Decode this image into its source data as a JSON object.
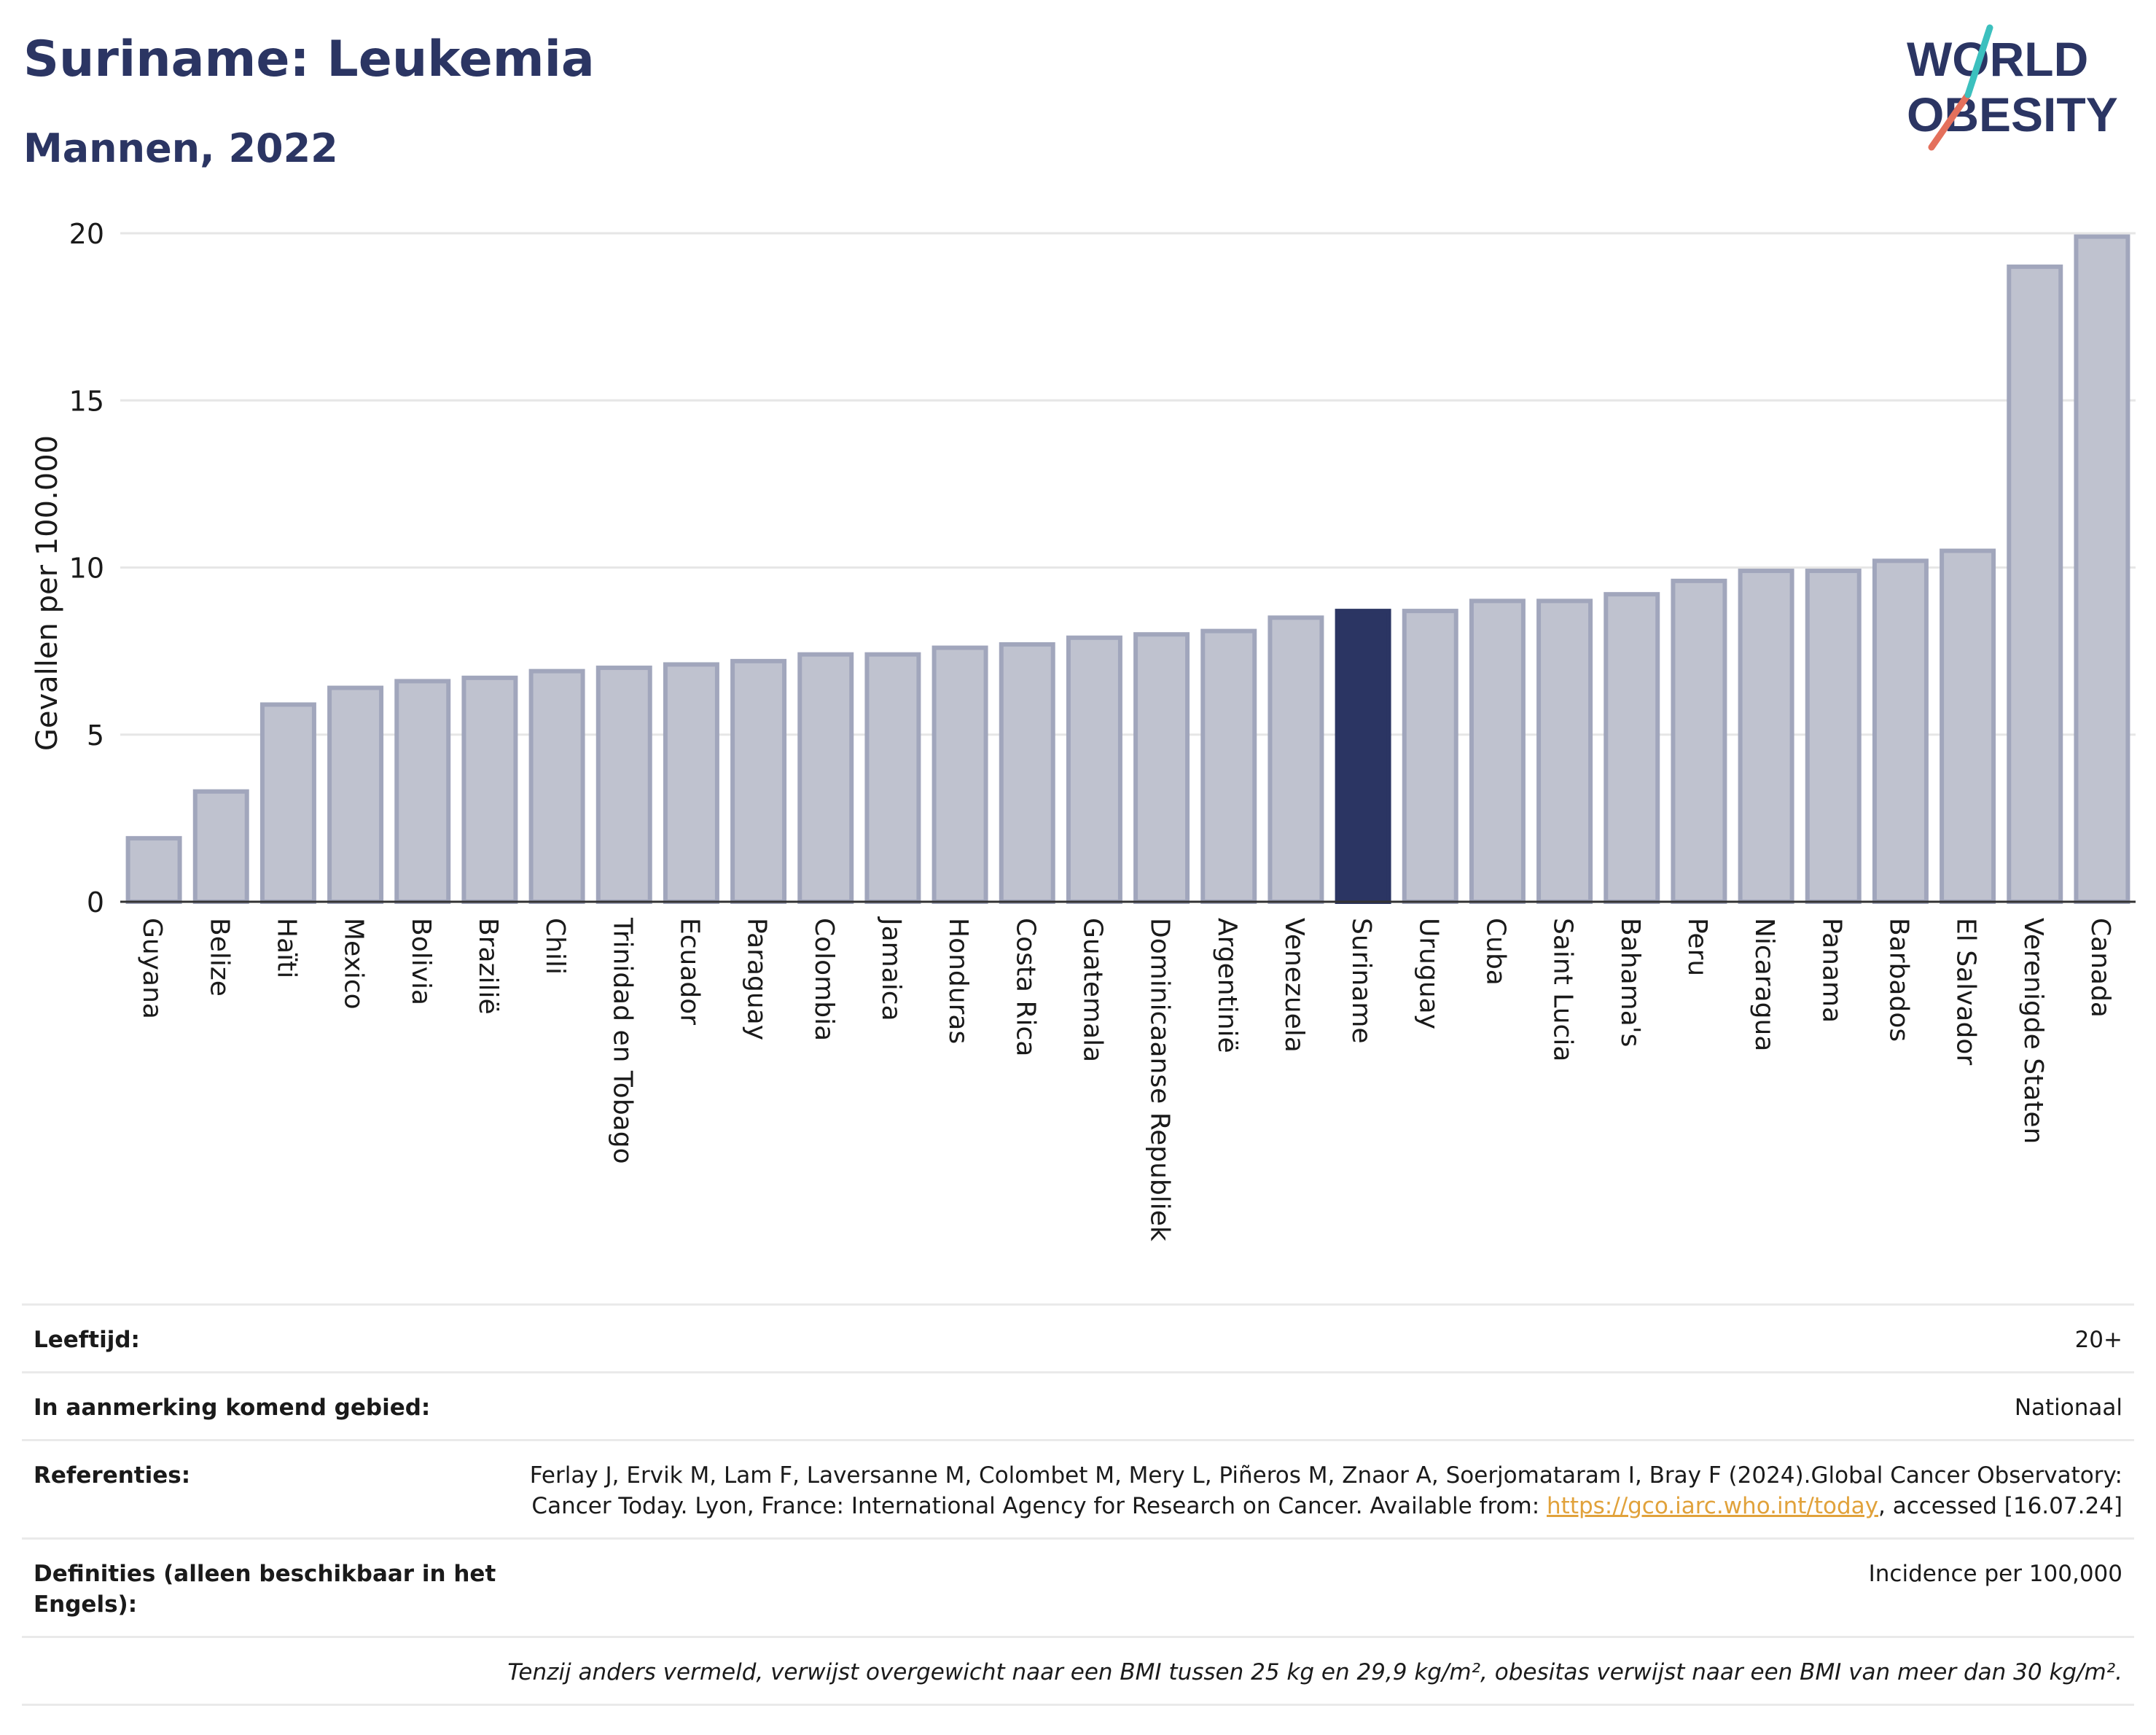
{
  "title": "Suriname: Leukemia",
  "subtitle": "Mannen, 2022",
  "logo": {
    "line1": "WORLD",
    "line2": "OBESITY"
  },
  "chart_data": {
    "type": "bar",
    "ylabel": "Gevallen per 100.000",
    "ylim": [
      0,
      20
    ],
    "yticks": [
      0,
      5,
      10,
      15,
      20
    ],
    "grid": true,
    "highlight": "Suriname",
    "colors": {
      "bar": "#bfc2cf",
      "bar_edge": "#a1a6bc",
      "highlight": "#2b3563"
    },
    "categories": [
      "Guyana",
      "Belize",
      "Haïti",
      "Mexico",
      "Bolivia",
      "Brazilië",
      "Chili",
      "Trinidad en Tobago",
      "Ecuador",
      "Paraguay",
      "Colombia",
      "Jamaica",
      "Honduras",
      "Costa Rica",
      "Guatemala",
      "Dominicaanse Republiek",
      "Argentinië",
      "Venezuela",
      "Suriname",
      "Uruguay",
      "Cuba",
      "Saint Lucia",
      "Bahama's",
      "Peru",
      "Nicaragua",
      "Panama",
      "Barbados",
      "El Salvador",
      "Verenigde Staten",
      "Canada"
    ],
    "values": [
      1.9,
      3.3,
      5.9,
      6.4,
      6.6,
      6.7,
      6.9,
      7.0,
      7.1,
      7.2,
      7.4,
      7.4,
      7.6,
      7.7,
      7.9,
      8.0,
      8.1,
      8.5,
      8.7,
      8.7,
      9.0,
      9.0,
      9.2,
      9.6,
      9.9,
      9.9,
      10.2,
      10.5,
      19.0,
      19.9
    ]
  },
  "meta": {
    "age_label": "Leeftijd:",
    "age_value": "20+",
    "area_label": "In aanmerking komend gebied:",
    "area_value": "Nationaal",
    "ref_label": "Referenties:",
    "ref_text1": "Ferlay J, Ervik M, Lam F, Laversanne M, Colombet M, Mery L, Piñeros M, Znaor A, Soerjomataram I, Bray F (2024).Global Cancer Observatory: Cancer Today. Lyon, France: International Agency for Research on Cancer. Available from: ",
    "ref_link": "https://gco.iarc.who.int/today",
    "ref_text2": ", accessed [16.07.24]",
    "def_label": "Definities (alleen beschikbaar in het Engels):",
    "def_value": "Incidence per 100,000",
    "note": "Tenzij anders vermeld, verwijst overgewicht naar een BMI tussen 25 kg en 29,9 kg/m², obesitas verwijst naar een BMI van meer dan 30 kg/m²."
  }
}
